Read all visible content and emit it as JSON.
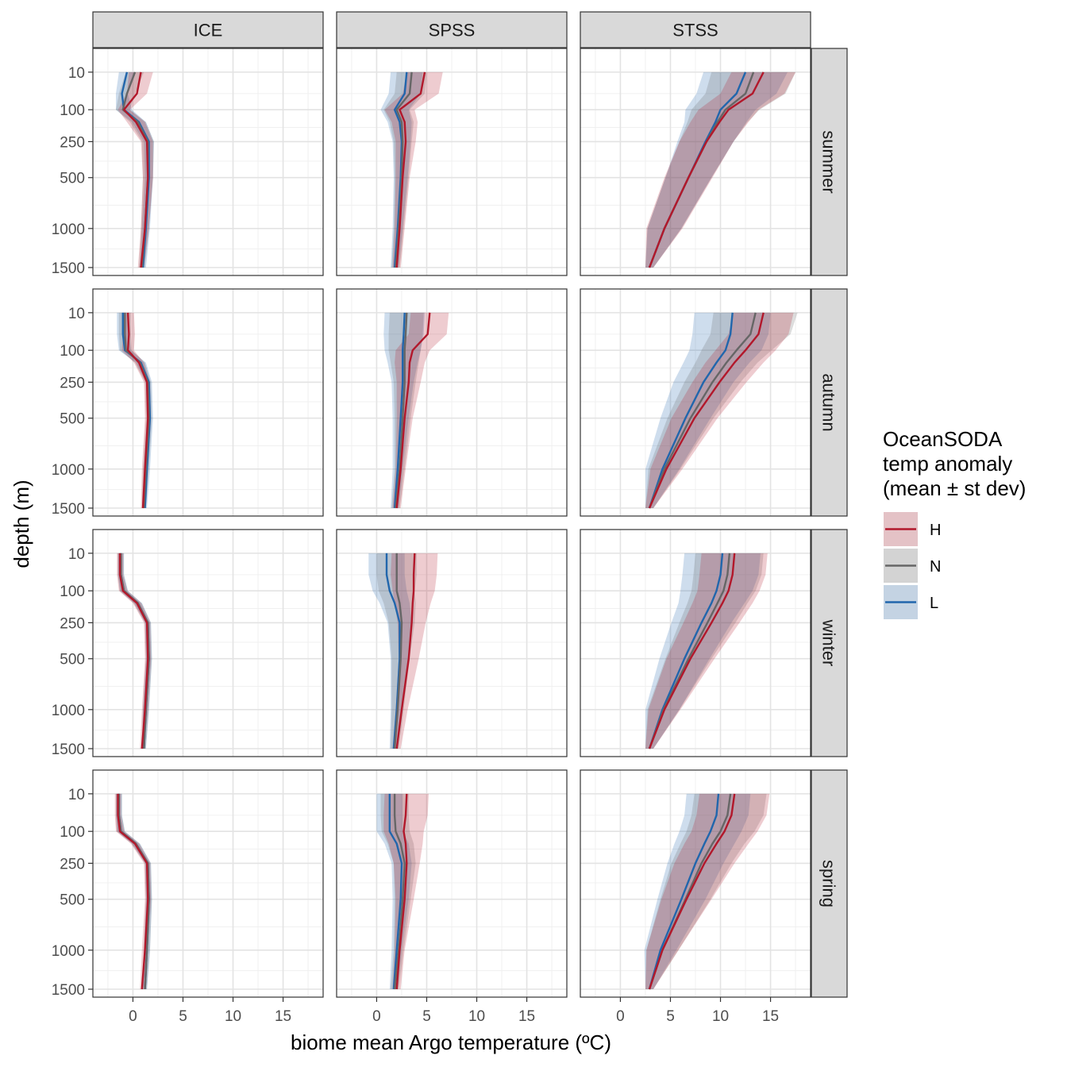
{
  "chart_data": {
    "type": "line",
    "xlabel": "biome mean Argo temperature (ºC)",
    "ylabel": "depth (m)",
    "xlim": [
      -4,
      19
    ],
    "ylim_sqrt_depth": [
      0,
      1500
    ],
    "x_ticks": [
      0,
      5,
      10,
      15
    ],
    "y_ticks": [
      10,
      100,
      250,
      500,
      1000,
      1500
    ],
    "grid": true,
    "legend_position": "right",
    "columns": [
      "ICE",
      "SPSS",
      "STSS"
    ],
    "rows": [
      "summer",
      "autumn",
      "winter",
      "spring"
    ],
    "legend": {
      "title": [
        "OceanSODA",
        "temp anomaly",
        "(mean ± st dev)"
      ],
      "items": [
        {
          "key": "H",
          "label": "H",
          "color": "#b2182b"
        },
        {
          "key": "N",
          "label": "N",
          "color": "#666666"
        },
        {
          "key": "L",
          "label": "L",
          "color": "#2166ac"
        }
      ]
    },
    "depth": [
      10,
      50,
      100,
      150,
      250,
      500,
      1000,
      1500
    ],
    "panels": {
      "ICE": {
        "summer": {
          "H": {
            "mean": [
              0.8,
              0.4,
              -0.9,
              0.3,
              1.4,
              1.5,
              1.2,
              0.8
            ],
            "sd": [
              1.2,
              1.0,
              0.6,
              0.9,
              0.6,
              0.5,
              0.4,
              0.3
            ]
          },
          "N": {
            "mean": [
              0.2,
              -0.6,
              -1.0,
              0.5,
              1.5,
              1.5,
              1.2,
              0.9
            ],
            "sd": [
              0.9,
              0.8,
              0.7,
              0.8,
              0.6,
              0.5,
              0.4,
              0.3
            ]
          },
          "L": {
            "mean": [
              -0.6,
              -1.1,
              -0.9,
              0.6,
              1.6,
              1.6,
              1.3,
              1.0
            ],
            "sd": [
              0.8,
              0.6,
              0.8,
              0.7,
              0.5,
              0.4,
              0.4,
              0.3
            ]
          }
        },
        "autumn": {
          "H": {
            "mean": [
              -0.5,
              -0.4,
              -0.5,
              0.6,
              1.4,
              1.5,
              1.2,
              1.0
            ],
            "sd": [
              0.6,
              0.6,
              0.6,
              0.5,
              0.3,
              0.3,
              0.3,
              0.2
            ]
          },
          "N": {
            "mean": [
              -0.8,
              -0.8,
              -0.7,
              0.7,
              1.5,
              1.6,
              1.3,
              1.1
            ],
            "sd": [
              0.6,
              0.6,
              0.6,
              0.5,
              0.3,
              0.3,
              0.3,
              0.2
            ]
          },
          "L": {
            "mean": [
              -1.0,
              -1.0,
              -0.8,
              0.8,
              1.6,
              1.7,
              1.4,
              1.2
            ],
            "sd": [
              0.6,
              0.6,
              0.6,
              0.5,
              0.3,
              0.3,
              0.3,
              0.2
            ]
          }
        },
        "winter": {
          "H": {
            "mean": [
              -1.3,
              -1.3,
              -1.0,
              0.4,
              1.4,
              1.5,
              1.2,
              0.9
            ],
            "sd": [
              0.3,
              0.3,
              0.4,
              0.4,
              0.3,
              0.3,
              0.3,
              0.2
            ]
          },
          "N": {
            "mean": [
              -1.2,
              -1.2,
              -0.9,
              0.5,
              1.5,
              1.6,
              1.3,
              1.1
            ],
            "sd": [
              0.3,
              0.3,
              0.4,
              0.4,
              0.3,
              0.3,
              0.3,
              0.2
            ]
          },
          "L": {
            "mean": [
              -1.2,
              -1.2,
              -0.9,
              0.5,
              1.5,
              1.6,
              1.3,
              1.1
            ],
            "sd": [
              0.3,
              0.3,
              0.4,
              0.4,
              0.3,
              0.3,
              0.3,
              0.2
            ]
          }
        },
        "spring": {
          "H": {
            "mean": [
              -1.5,
              -1.5,
              -1.3,
              0.2,
              1.4,
              1.5,
              1.2,
              0.9
            ],
            "sd": [
              0.3,
              0.3,
              0.4,
              0.4,
              0.3,
              0.3,
              0.3,
              0.2
            ]
          },
          "N": {
            "mean": [
              -1.4,
              -1.4,
              -1.2,
              0.3,
              1.5,
              1.6,
              1.4,
              1.2
            ],
            "sd": [
              0.3,
              0.3,
              0.4,
              0.4,
              0.3,
              0.3,
              0.3,
              0.2
            ]
          },
          "L": {
            "mean": [
              -1.4,
              -1.4,
              -1.2,
              0.3,
              1.5,
              1.6,
              1.4,
              1.2
            ],
            "sd": [
              0.3,
              0.3,
              0.4,
              0.4,
              0.3,
              0.3,
              0.3,
              0.2
            ]
          }
        }
      },
      "SPSS": {
        "summer": {
          "H": {
            "mean": [
              4.8,
              4.4,
              2.3,
              2.8,
              2.9,
              2.6,
              2.3,
              2.0
            ],
            "sd": [
              1.8,
              1.8,
              1.5,
              1.3,
              1.0,
              0.7,
              0.5,
              0.4
            ]
          },
          "N": {
            "mean": [
              3.5,
              3.3,
              2.0,
              2.5,
              2.6,
              2.5,
              2.2,
              1.9
            ],
            "sd": [
              1.5,
              1.5,
              1.3,
              1.2,
              0.9,
              0.7,
              0.5,
              0.4
            ]
          },
          "L": {
            "mean": [
              3.0,
              2.8,
              1.8,
              2.3,
              2.5,
              2.4,
              2.1,
              1.8
            ],
            "sd": [
              1.6,
              1.6,
              1.4,
              1.2,
              0.9,
              0.7,
              0.5,
              0.4
            ]
          }
        },
        "autumn": {
          "H": {
            "mean": [
              5.3,
              5.1,
              3.6,
              3.3,
              3.2,
              2.8,
              2.4,
              2.0
            ],
            "sd": [
              1.9,
              1.9,
              1.7,
              1.5,
              1.2,
              0.8,
              0.5,
              0.4
            ]
          },
          "N": {
            "mean": [
              3.0,
              2.9,
              2.8,
              2.8,
              2.8,
              2.6,
              2.3,
              1.9
            ],
            "sd": [
              1.7,
              1.7,
              1.6,
              1.4,
              1.1,
              0.8,
              0.5,
              0.4
            ]
          },
          "L": {
            "mean": [
              2.8,
              2.7,
              2.6,
              2.6,
              2.6,
              2.4,
              2.1,
              1.8
            ],
            "sd": [
              2.0,
              2.0,
              1.8,
              1.5,
              1.1,
              0.8,
              0.5,
              0.4
            ]
          }
        },
        "winter": {
          "H": {
            "mean": [
              3.8,
              3.7,
              3.7,
              3.6,
              3.5,
              3.2,
              2.5,
              2.0
            ],
            "sd": [
              2.3,
              2.3,
              2.1,
              1.8,
              1.4,
              1.0,
              0.6,
              0.4
            ]
          },
          "N": {
            "mean": [
              2.0,
              2.0,
              2.0,
              2.3,
              2.5,
              2.4,
              2.1,
              1.8
            ],
            "sd": [
              2.0,
              2.0,
              1.8,
              1.6,
              1.3,
              0.9,
              0.6,
              0.4
            ]
          },
          "L": {
            "mean": [
              1.0,
              1.0,
              1.3,
              1.8,
              2.3,
              2.3,
              2.0,
              1.7
            ],
            "sd": [
              1.8,
              1.8,
              1.7,
              1.5,
              1.2,
              0.9,
              0.6,
              0.4
            ]
          }
        },
        "spring": {
          "H": {
            "mean": [
              3.0,
              2.9,
              2.7,
              2.9,
              3.0,
              2.8,
              2.3,
              2.0
            ],
            "sd": [
              2.2,
              2.2,
              2.0,
              1.7,
              1.3,
              0.9,
              0.5,
              0.4
            ]
          },
          "N": {
            "mean": [
              1.8,
              1.8,
              1.9,
              2.4,
              2.8,
              2.6,
              2.2,
              1.8
            ],
            "sd": [
              1.4,
              1.4,
              1.4,
              1.3,
              1.1,
              0.8,
              0.5,
              0.4
            ]
          },
          "L": {
            "mean": [
              1.3,
              1.3,
              1.3,
              2.0,
              2.5,
              2.4,
              2.0,
              1.7
            ],
            "sd": [
              1.3,
              1.3,
              1.3,
              1.2,
              1.0,
              0.8,
              0.5,
              0.4
            ]
          }
        }
      },
      "STSS": {
        "summer": {
          "H": {
            "mean": [
              14.3,
              13.2,
              10.8,
              9.9,
              8.6,
              6.8,
              4.4,
              2.9
            ],
            "sd": [
              3.2,
              3.2,
              3.0,
              2.9,
              2.7,
              2.4,
              1.8,
              0.4
            ]
          },
          "N": {
            "mean": [
              13.3,
              12.5,
              10.5,
              9.7,
              8.6,
              6.8,
              4.4,
              2.9
            ],
            "sd": [
              4.2,
              4.0,
              3.4,
              3.0,
              2.7,
              2.3,
              1.7,
              0.4
            ]
          },
          "L": {
            "mean": [
              12.5,
              11.6,
              10.0,
              9.5,
              8.5,
              6.8,
              4.4,
              2.9
            ],
            "sd": [
              4.2,
              4.0,
              3.5,
              3.1,
              2.8,
              2.3,
              1.7,
              0.4
            ]
          }
        },
        "autumn": {
          "H": {
            "mean": [
              14.3,
              13.8,
              12.5,
              11.4,
              9.9,
              7.4,
              4.6,
              2.9
            ],
            "sd": [
              3.0,
              3.0,
              3.0,
              2.9,
              2.7,
              2.3,
              1.6,
              0.4
            ]
          },
          "N": {
            "mean": [
              13.5,
              13.0,
              11.6,
              10.6,
              9.2,
              7.0,
              4.4,
              2.9
            ],
            "sd": [
              4.2,
              4.0,
              3.5,
              3.1,
              2.8,
              2.3,
              1.6,
              0.4
            ]
          },
          "L": {
            "mean": [
              11.2,
              11.0,
              10.5,
              9.6,
              8.3,
              6.5,
              4.2,
              2.9
            ],
            "sd": [
              3.8,
              3.8,
              3.6,
              3.3,
              3.0,
              2.5,
              1.7,
              0.4
            ]
          }
        },
        "winter": {
          "H": {
            "mean": [
              11.4,
              11.2,
              10.8,
              10.2,
              9.1,
              7.0,
              4.4,
              2.9
            ],
            "sd": [
              3.3,
              3.3,
              3.1,
              3.0,
              2.8,
              2.4,
              1.6,
              0.4
            ]
          },
          "N": {
            "mean": [
              10.9,
              10.7,
              10.3,
              9.7,
              8.7,
              6.8,
              4.3,
              2.9
            ],
            "sd": [
              3.4,
              3.4,
              3.2,
              3.0,
              2.8,
              2.3,
              1.6,
              0.4
            ]
          },
          "L": {
            "mean": [
              10.2,
              10.0,
              9.6,
              9.1,
              8.1,
              6.4,
              4.2,
              2.9
            ],
            "sd": [
              3.8,
              3.8,
              3.6,
              3.3,
              3.0,
              2.5,
              1.7,
              0.4
            ]
          }
        },
        "spring": {
          "H": {
            "mean": [
              11.4,
              11.1,
              10.4,
              9.6,
              8.4,
              6.6,
              4.2,
              2.9
            ],
            "sd": [
              3.5,
              3.5,
              3.3,
              3.2,
              3.0,
              2.5,
              1.6,
              0.4
            ]
          },
          "N": {
            "mean": [
              11.0,
              10.7,
              10.0,
              9.2,
              8.1,
              6.5,
              4.2,
              2.9
            ],
            "sd": [
              3.6,
              3.6,
              3.4,
              3.2,
              3.0,
              2.5,
              1.6,
              0.4
            ]
          },
          "L": {
            "mean": [
              9.8,
              9.6,
              9.0,
              8.4,
              7.5,
              6.1,
              4.0,
              2.9
            ],
            "sd": [
              3.2,
              3.2,
              3.1,
              3.0,
              2.8,
              2.4,
              1.6,
              0.4
            ]
          }
        }
      }
    }
  }
}
